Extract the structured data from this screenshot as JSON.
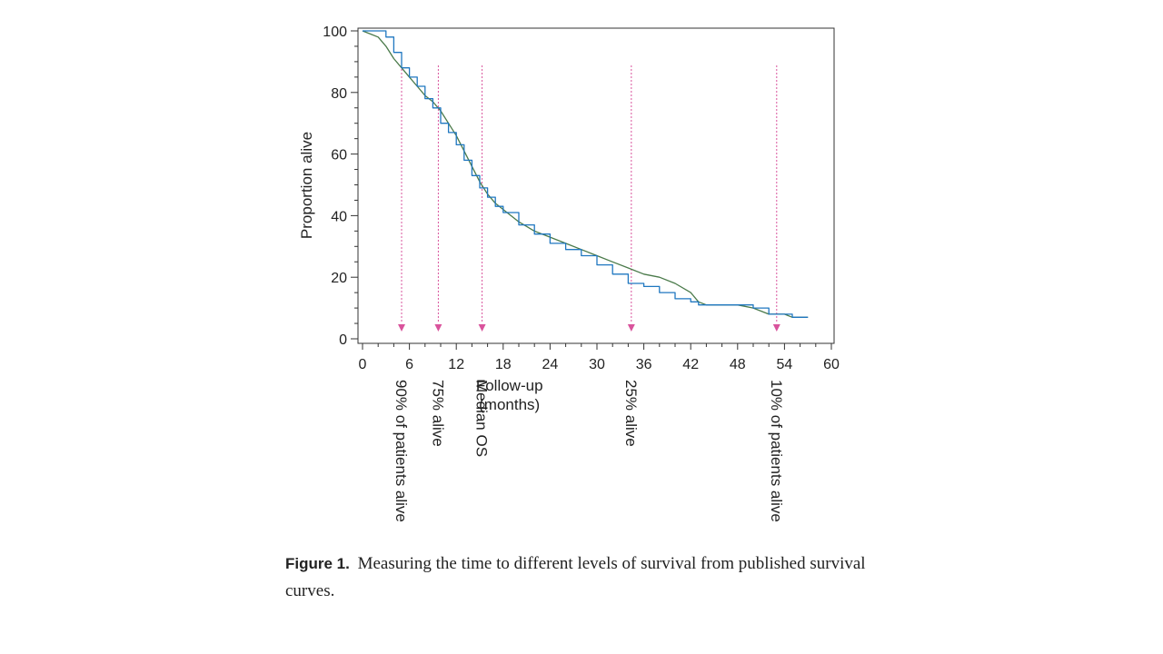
{
  "chart_data": {
    "type": "line",
    "title": "",
    "xlabel": "Follow-up\n(months)",
    "ylabel": "Proportion alive",
    "xlim": [
      0,
      60
    ],
    "ylim": [
      0,
      100
    ],
    "x_ticks": [
      0,
      6,
      12,
      18,
      24,
      30,
      36,
      42,
      48,
      54,
      60
    ],
    "y_ticks": [
      0,
      20,
      40,
      60,
      80,
      100
    ],
    "grid": false,
    "legend": "none",
    "series": [
      {
        "color": "#4a7a4a",
        "step": false,
        "x": [
          0,
          1,
          2,
          3,
          4,
          5,
          6,
          7,
          8,
          9,
          10,
          11,
          12,
          13,
          14,
          15,
          16,
          17,
          18,
          20,
          22,
          24,
          26,
          28,
          30,
          32,
          34,
          36,
          38,
          40,
          42,
          43,
          44,
          46,
          48,
          50,
          52,
          54,
          55,
          56,
          57
        ],
        "y": [
          100,
          99,
          98,
          95,
          91,
          88,
          85,
          82,
          79,
          77,
          74,
          70,
          66,
          61,
          56,
          51,
          47,
          44,
          42,
          38,
          35,
          33,
          31,
          29,
          27,
          25,
          23,
          21,
          20,
          18,
          15,
          12,
          11,
          11,
          11,
          10,
          8,
          8,
          7,
          7,
          7
        ]
      },
      {
        "color": "#1f77c0",
        "step": true,
        "x": [
          0,
          1,
          2,
          3,
          4,
          5,
          6,
          7,
          8,
          9,
          10,
          11,
          12,
          13,
          14,
          15,
          16,
          17,
          18,
          20,
          22,
          24,
          26,
          28,
          30,
          32,
          34,
          36,
          38,
          40,
          42,
          43,
          44,
          46,
          48,
          50,
          52,
          54,
          55,
          56,
          57
        ],
        "y": [
          100,
          100,
          100,
          98,
          93,
          88,
          85,
          82,
          78,
          75,
          70,
          67,
          63,
          58,
          53,
          49,
          46,
          43,
          41,
          37,
          34,
          31,
          29,
          27,
          24,
          21,
          18,
          17,
          15,
          13,
          12,
          11,
          11,
          11,
          11,
          10,
          8,
          8,
          7,
          7,
          7
        ]
      }
    ],
    "annotations": [
      {
        "label": "90% of patients alive",
        "x": 5
      },
      {
        "label": "75% alive",
        "x": 9.7
      },
      {
        "label": "Median OS",
        "x": 15.3
      },
      {
        "label": "25% alive",
        "x": 34.4
      },
      {
        "label": "10% of patients alive",
        "x": 53
      }
    ],
    "annotation_color": "#d9539c"
  },
  "caption": {
    "label": "Figure 1.",
    "text": "Measuring the time to different levels of survival from published survival curves."
  }
}
